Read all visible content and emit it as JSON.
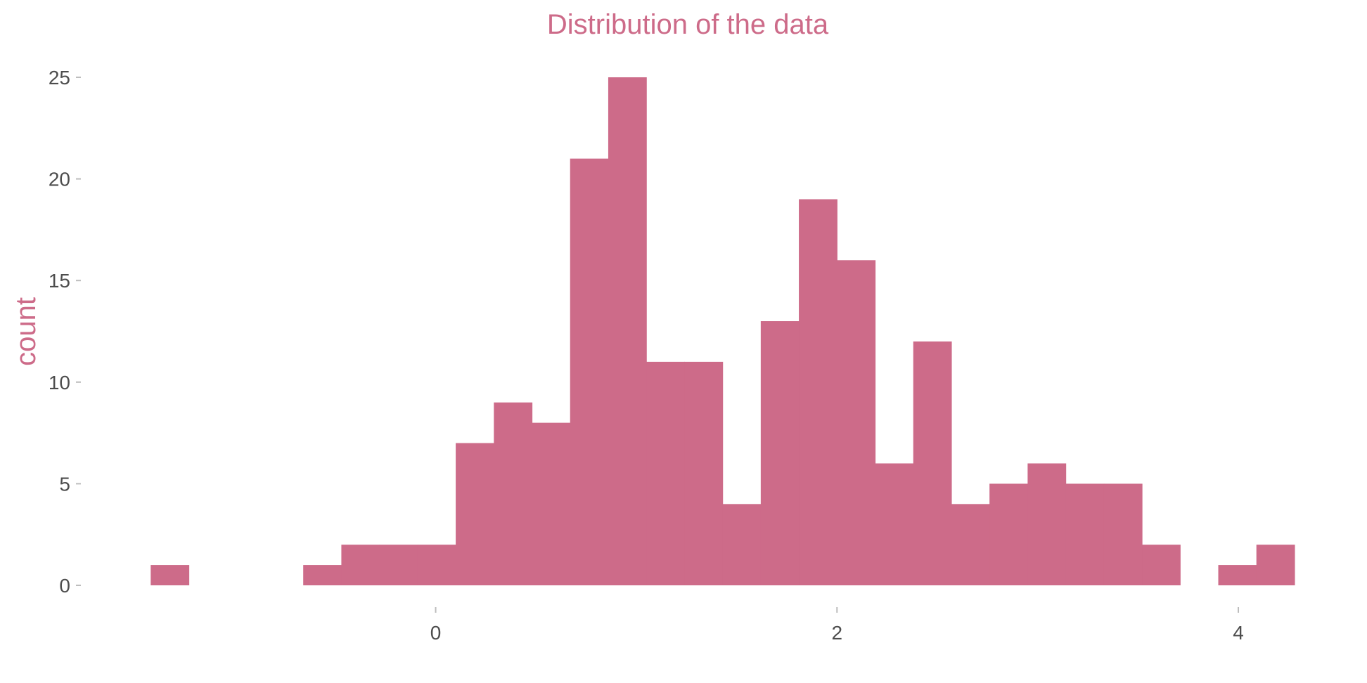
{
  "chart_data": {
    "type": "bar",
    "title": "Distribution of the data",
    "xlabel": "",
    "ylabel": "count",
    "bin_width": 0.19,
    "bins": [
      {
        "x_start": -1.42,
        "x_end": -1.23,
        "count": 1
      },
      {
        "x_start": -1.23,
        "x_end": -1.04,
        "count": 0
      },
      {
        "x_start": -1.04,
        "x_end": -0.85,
        "count": 0
      },
      {
        "x_start": -0.85,
        "x_end": -0.66,
        "count": 0
      },
      {
        "x_start": -0.66,
        "x_end": -0.47,
        "count": 1
      },
      {
        "x_start": -0.47,
        "x_end": -0.28,
        "count": 2
      },
      {
        "x_start": -0.28,
        "x_end": -0.09,
        "count": 2
      },
      {
        "x_start": -0.09,
        "x_end": 0.1,
        "count": 2
      },
      {
        "x_start": 0.1,
        "x_end": 0.29,
        "count": 7
      },
      {
        "x_start": 0.29,
        "x_end": 0.48,
        "count": 9
      },
      {
        "x_start": 0.48,
        "x_end": 0.67,
        "count": 8
      },
      {
        "x_start": 0.67,
        "x_end": 0.86,
        "count": 21
      },
      {
        "x_start": 0.86,
        "x_end": 1.05,
        "count": 25
      },
      {
        "x_start": 1.05,
        "x_end": 1.24,
        "count": 11
      },
      {
        "x_start": 1.24,
        "x_end": 1.43,
        "count": 11
      },
      {
        "x_start": 1.43,
        "x_end": 1.62,
        "count": 4
      },
      {
        "x_start": 1.62,
        "x_end": 1.81,
        "count": 13
      },
      {
        "x_start": 1.81,
        "x_end": 2.0,
        "count": 19
      },
      {
        "x_start": 2.0,
        "x_end": 2.19,
        "count": 16
      },
      {
        "x_start": 2.19,
        "x_end": 2.38,
        "count": 6
      },
      {
        "x_start": 2.38,
        "x_end": 2.57,
        "count": 12
      },
      {
        "x_start": 2.57,
        "x_end": 2.76,
        "count": 4
      },
      {
        "x_start": 2.76,
        "x_end": 2.95,
        "count": 5
      },
      {
        "x_start": 2.95,
        "x_end": 3.14,
        "count": 6
      },
      {
        "x_start": 3.14,
        "x_end": 3.33,
        "count": 5
      },
      {
        "x_start": 3.33,
        "x_end": 3.52,
        "count": 5
      },
      {
        "x_start": 3.52,
        "x_end": 3.71,
        "count": 2
      },
      {
        "x_start": 3.71,
        "x_end": 3.9,
        "count": 0
      },
      {
        "x_start": 3.9,
        "x_end": 4.09,
        "count": 1
      },
      {
        "x_start": 4.09,
        "x_end": 4.28,
        "count": 2
      }
    ],
    "xlim": [
      -1.74,
      4.48
    ],
    "ylim": [
      0,
      25
    ],
    "x_ticks": [
      {
        "value": 0,
        "label": "0"
      },
      {
        "value": 2,
        "label": "2"
      },
      {
        "value": 4,
        "label": "4"
      }
    ],
    "y_ticks": [
      {
        "value": 0,
        "label": "0"
      },
      {
        "value": 5,
        "label": "5"
      },
      {
        "value": 10,
        "label": "10"
      },
      {
        "value": 15,
        "label": "15"
      },
      {
        "value": 20,
        "label": "20"
      },
      {
        "value": 25,
        "label": "25"
      }
    ],
    "grid": false,
    "legend": "none",
    "colors": {
      "bar": "#cd6b89",
      "title": "#cd6b89",
      "axis_title": "#cd6b89",
      "tick_label": "#4d4d4d"
    }
  }
}
